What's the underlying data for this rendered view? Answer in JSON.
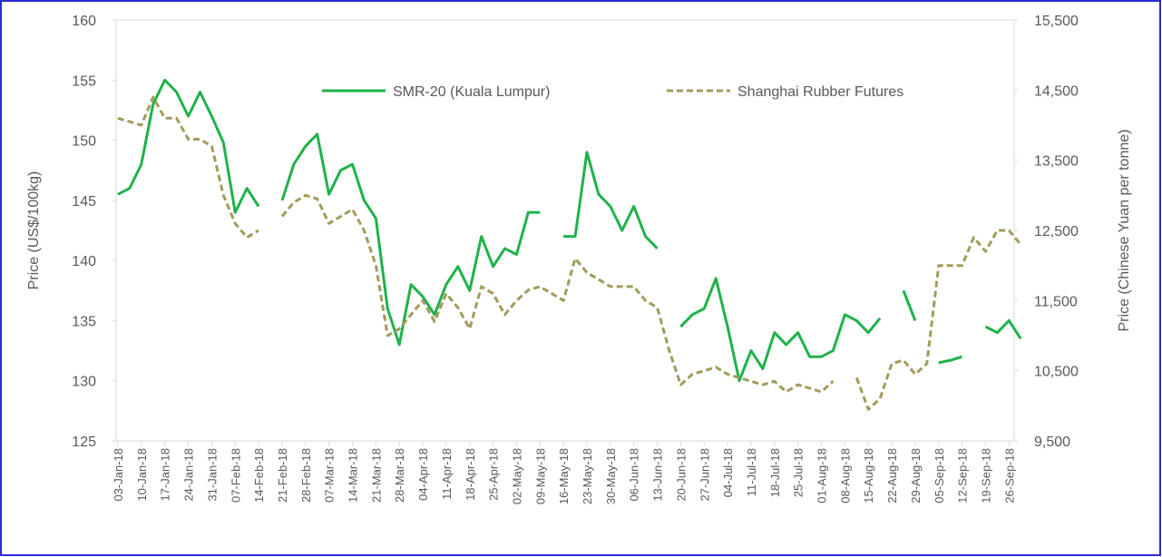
{
  "chart_data": {
    "type": "line",
    "categories": [
      "03-Jan-18",
      null,
      "10-Jan-18",
      null,
      "17-Jan-18",
      null,
      "24-Jan-18",
      null,
      "31-Jan-18",
      null,
      "07-Feb-18",
      null,
      "14-Feb-18",
      null,
      "21-Feb-18",
      null,
      "28-Feb-18",
      null,
      "07-Mar-18",
      null,
      "14-Mar-18",
      null,
      "21-Mar-18",
      null,
      "28-Mar-18",
      null,
      "04-Apr-18",
      null,
      "11-Apr-18",
      null,
      "18-Apr-18",
      null,
      "25-Apr-18",
      null,
      "02-May-18",
      null,
      "09-May-18",
      null,
      "16-May-18",
      null,
      "23-May-18",
      null,
      "30-May-18",
      null,
      "06-Jun-18",
      null,
      "13-Jun-18",
      null,
      "20-Jun-18",
      null,
      "27-Jun-18",
      null,
      "04-Jul-18",
      null,
      "11-Jul-18",
      null,
      "18-Jul-18",
      null,
      "25-Jul-18",
      null,
      "01-Aug-18",
      null,
      "08-Aug-18",
      null,
      "15-Aug-18",
      null,
      "22-Aug-18",
      null,
      "29-Aug-18",
      null,
      "05-Sep-18",
      null,
      "12-Sep-18",
      null,
      "19-Sep-18",
      null,
      "26-Sep-18",
      null
    ],
    "series": [
      {
        "name": "SMR-20 (Kuala Lumpur)",
        "color": "#1fb24a",
        "axis": "y",
        "dashed": false,
        "values": [
          145.5,
          146,
          148,
          153,
          155,
          154,
          152,
          154,
          152,
          149.8,
          144,
          146,
          144.5,
          null,
          145,
          148,
          149.5,
          150.5,
          145.5,
          147.5,
          148,
          145,
          143.5,
          136,
          133,
          138,
          137,
          135.5,
          138,
          139.5,
          137.5,
          142,
          139.5,
          141,
          140.5,
          144,
          144,
          null,
          142,
          142,
          149,
          145.5,
          144.5,
          142.5,
          144.5,
          142,
          141,
          null,
          134.5,
          135.5,
          136,
          138.5,
          134.5,
          130,
          132.5,
          131,
          134,
          133,
          134,
          132,
          132,
          132.5,
          135.5,
          135,
          134,
          135.2,
          null,
          137.5,
          135,
          null,
          131.5,
          131.7,
          132,
          null,
          134.5,
          134,
          135,
          133.5
        ]
      },
      {
        "name": "Shanghai Rubber Futures",
        "color": "#a39a5c",
        "axis": "y2",
        "dashed": true,
        "values": [
          14100,
          14050,
          14000,
          14400,
          14100,
          14100,
          13800,
          13800,
          13700,
          13000,
          12600,
          12400,
          12500,
          null,
          12700,
          12900,
          13000,
          12950,
          12600,
          12700,
          12800,
          12500,
          12000,
          11000,
          11100,
          11300,
          11500,
          11200,
          11600,
          11400,
          11100,
          11700,
          11600,
          11300,
          11500,
          11650,
          11700,
          11600,
          11500,
          12100,
          11900,
          11800,
          11700,
          11700,
          11700,
          11500,
          11400,
          10800,
          10300,
          10450,
          10500,
          10550,
          10450,
          10400,
          10350,
          10300,
          10350,
          10200,
          10300,
          10250,
          10200,
          10350,
          null,
          10400,
          9950,
          10100,
          10600,
          10650,
          10450,
          10600,
          12000,
          12000,
          12000,
          12400,
          12200,
          12500,
          12500,
          12300
        ]
      }
    ],
    "ylabel": "Price (US$/100kg)",
    "y2label": "Price (Chinese Yuan per tonne)",
    "ylim": [
      125,
      160
    ],
    "yticks": [
      125,
      130,
      135,
      140,
      145,
      150,
      155,
      160
    ],
    "y2lim": [
      9500,
      15500
    ],
    "y2ticks": [
      {
        "value": 9500,
        "label": "9,500"
      },
      {
        "value": 10500,
        "label": "10,500"
      },
      {
        "value": 11500,
        "label": "11,500"
      },
      {
        "value": 12500,
        "label": "12,500"
      },
      {
        "value": 13500,
        "label": "13,500"
      },
      {
        "value": 14500,
        "label": "14,500"
      },
      {
        "value": 15500,
        "label": "15,500"
      }
    ],
    "legend": "top"
  }
}
